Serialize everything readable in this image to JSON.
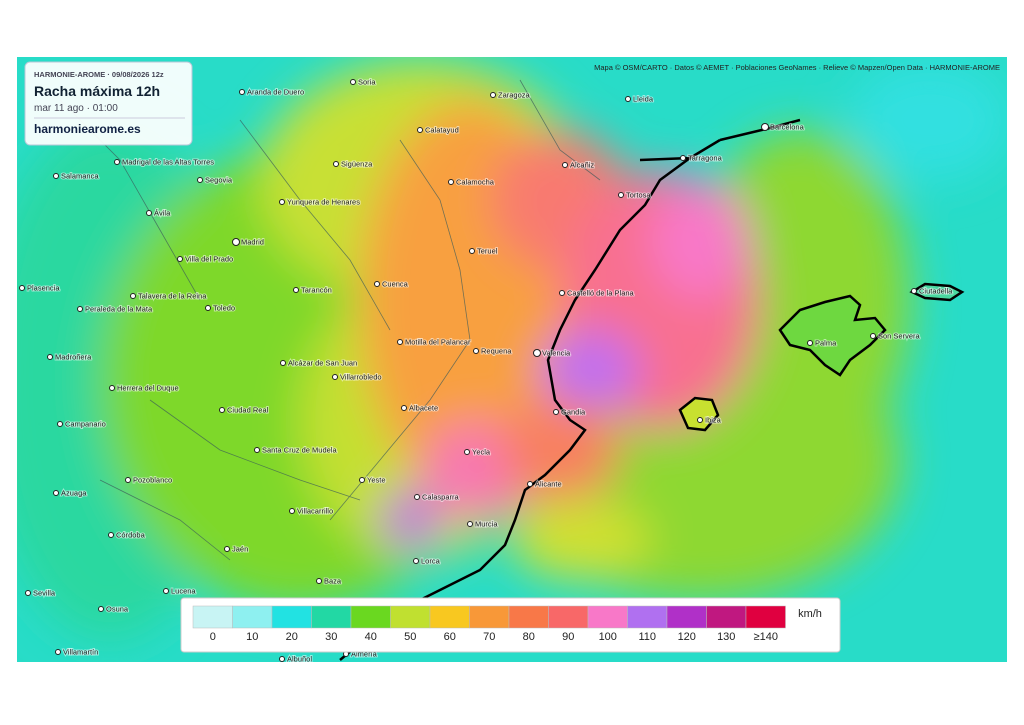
{
  "header": {
    "model_run": "HARMONIE-AROME · 09/08/2026 12z",
    "title": "Racha máxima 12h",
    "valid_time": "mar 11 ago · 01:00",
    "site": "harmoniearome.es"
  },
  "attribution": "Mapa © OSM/CARTO · Datos © AEMET · Poblaciones GeoNames · Relieve © Mapzen/Open Data · HARMONIE-AROME",
  "cities": [
    "Soria",
    "Aranda de Duero",
    "Zaragoza",
    "Lleida",
    "Barcelona",
    "Calatayud",
    "Tarragona",
    "Madrigal de las Altas Torres",
    "Sigüenza",
    "Alcañiz",
    "Salamanca",
    "Segovia",
    "Calamocha",
    "Tortosa",
    "Yunquera de Henares",
    "Ávila",
    "Madrid",
    "Teruel",
    "Villa del Prado",
    "Plasencia",
    "Tarancón",
    "Cuenca",
    "Castelló de la Plana",
    "Ciutadella",
    "Talavera de la Reina",
    "Peraleda de la Mata",
    "Toledo",
    "Son Servera",
    "Motilla del Palancar",
    "Palma",
    "Requena",
    "Valencia",
    "Madroñera",
    "Alcázar de San Juan",
    "Villarrobledo",
    "Herrera del Duque",
    "Albacete",
    "Ciudad Real",
    "Gandia",
    "Ibiza",
    "Campanario",
    "Santa Cruz de Mudela",
    "Yecla",
    "Yeste",
    "Pozoblanco",
    "Alicante",
    "Azuaga",
    "Calasparra",
    "Villacarrillo",
    "Murcia",
    "Córdoba",
    "Jaén",
    "Lorca",
    "Baza",
    "Sevilla",
    "Lucena",
    "Osuna",
    "Villamartín",
    "Almería",
    "Albuñol"
  ],
  "legend": {
    "unit": "km/h",
    "items": [
      {
        "label": "0",
        "color": "#c8f4f4"
      },
      {
        "label": "10",
        "color": "#8ef0f0"
      },
      {
        "label": "20",
        "color": "#22e2e2"
      },
      {
        "label": "30",
        "color": "#22d8a4"
      },
      {
        "label": "40",
        "color": "#6ad820"
      },
      {
        "label": "50",
        "color": "#c0e030"
      },
      {
        "label": "60",
        "color": "#f8c820"
      },
      {
        "label": "70",
        "color": "#f89838"
      },
      {
        "label": "80",
        "color": "#f87848"
      },
      {
        "label": "90",
        "color": "#f86868"
      },
      {
        "label": "100",
        "color": "#f878c8"
      },
      {
        "label": "110",
        "color": "#b070f0"
      },
      {
        "label": "120",
        "color": "#b030c8"
      },
      {
        "label": "130",
        "color": "#c01880"
      },
      {
        "label": "≥140",
        "color": "#e00040"
      }
    ]
  }
}
